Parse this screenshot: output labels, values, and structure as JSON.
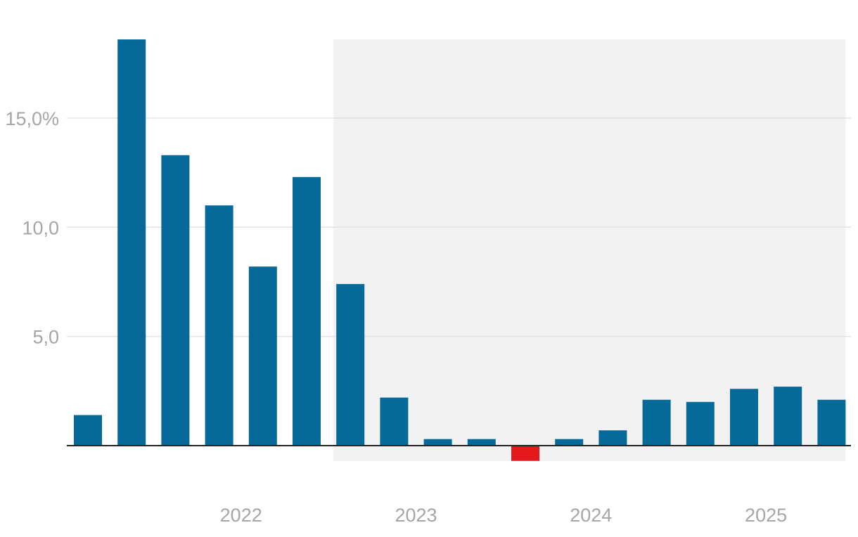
{
  "chart_data": {
    "type": "bar",
    "title": "",
    "xlabel": "",
    "ylabel": "",
    "ylim": [
      -0.7,
      18.6
    ],
    "y_ticks": [
      {
        "value": 5,
        "label": "5,0"
      },
      {
        "value": 10,
        "label": "10,0"
      },
      {
        "value": 15,
        "label": "15,0%"
      }
    ],
    "x_year_labels": [
      {
        "label": "2022",
        "at_index": 3.5
      },
      {
        "label": "2023",
        "at_index": 7.5
      },
      {
        "label": "2024",
        "at_index": 11.5
      },
      {
        "label": "2025",
        "at_index": 15.5
      }
    ],
    "shaded_region": {
      "from_index": 6,
      "to_index": 17,
      "color": "#f2f2f2"
    },
    "grid": true,
    "values": [
      1.4,
      18.6,
      13.3,
      11.0,
      8.2,
      12.3,
      7.4,
      2.2,
      0.3,
      0.3,
      -0.7,
      0.3,
      0.7,
      2.1,
      2.0,
      2.6,
      2.7,
      2.1
    ],
    "colors": {
      "positive": "#05699a",
      "negative": "#e3191b",
      "grid": "#e3e3e3",
      "axis": "#222222"
    }
  }
}
